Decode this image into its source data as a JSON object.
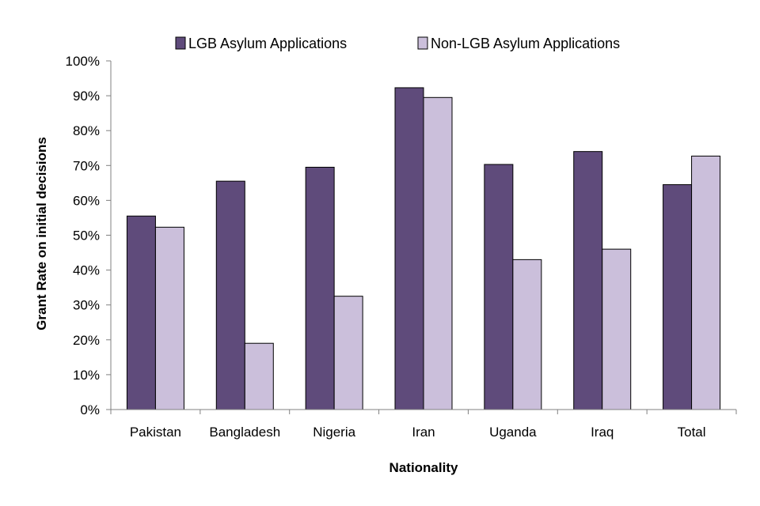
{
  "chart_data": {
    "type": "bar",
    "title": "",
    "xlabel": "Nationality",
    "ylabel": "Grant Rate on initial decisions",
    "ylim": [
      0,
      100
    ],
    "ytick_step": 10,
    "ytick_suffix": "%",
    "categories": [
      "Pakistan",
      "Bangladesh",
      "Nigeria",
      "Iran",
      "Uganda",
      "Iraq",
      "Total"
    ],
    "series": [
      {
        "name": "LGB Asylum Applications",
        "color": "#5f4b7b",
        "values": [
          55.5,
          65.5,
          69.5,
          92.3,
          70.3,
          74,
          64.5
        ]
      },
      {
        "name": "Non-LGB Asylum Applications",
        "color": "#cbbfdb",
        "values": [
          52.3,
          19,
          32.5,
          89.5,
          43,
          46,
          72.7
        ]
      }
    ],
    "legend_position": "top"
  }
}
